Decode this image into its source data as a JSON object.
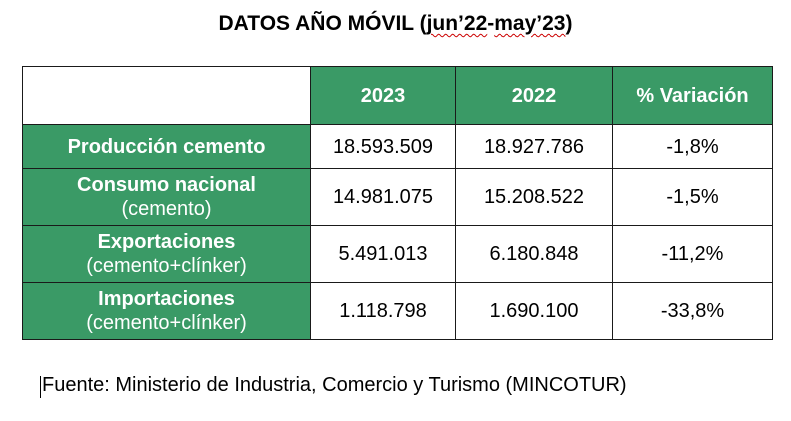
{
  "title": {
    "prefix": "DATOS AÑO MÓVIL (",
    "part1": "jun’22",
    "dash": "-",
    "part2": "may’23",
    "suffix": ")"
  },
  "table": {
    "headers": [
      "",
      "2023",
      "2022",
      "% Variación"
    ],
    "rows": [
      {
        "label": "Producción cemento",
        "sublabel": "",
        "v2023": "18.593.509",
        "v2022": "18.927.786",
        "variation": "-1,8%"
      },
      {
        "label": "Consumo nacional",
        "sublabel": "(cemento)",
        "v2023": "14.981.075",
        "v2022": "15.208.522",
        "variation": "-1,5%"
      },
      {
        "label": "Exportaciones",
        "sublabel": "(cemento+clínker)",
        "v2023": "5.491.013",
        "v2022": "6.180.848",
        "variation": "-11,2%"
      },
      {
        "label": "Importaciones",
        "sublabel": "(cemento+clínker)",
        "v2023": "1.118.798",
        "v2022": "1.690.100",
        "variation": "-33,8%"
      }
    ]
  },
  "source": "Fuente: Ministerio de Industria, Comercio y Turismo (MINCOTUR)",
  "colors": {
    "header_green": "#3a9a66",
    "text_white": "#ffffff"
  }
}
